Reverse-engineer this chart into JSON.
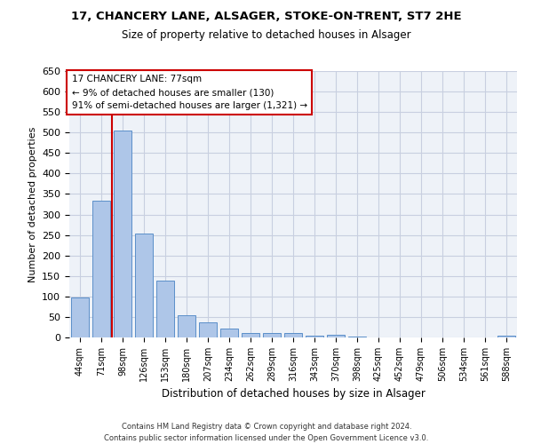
{
  "title1": "17, CHANCERY LANE, ALSAGER, STOKE-ON-TRENT, ST7 2HE",
  "title2": "Size of property relative to detached houses in Alsager",
  "xlabel": "Distribution of detached houses by size in Alsager",
  "ylabel": "Number of detached properties",
  "categories": [
    "44sqm",
    "71sqm",
    "98sqm",
    "126sqm",
    "153sqm",
    "180sqm",
    "207sqm",
    "234sqm",
    "262sqm",
    "289sqm",
    "316sqm",
    "343sqm",
    "370sqm",
    "398sqm",
    "425sqm",
    "452sqm",
    "479sqm",
    "506sqm",
    "534sqm",
    "561sqm",
    "588sqm"
  ],
  "bar_heights": [
    97,
    333,
    504,
    254,
    138,
    54,
    37,
    21,
    10,
    11,
    11,
    5,
    6,
    2,
    1,
    1,
    1,
    0,
    0,
    1,
    5
  ],
  "bar_color": "#aec6e8",
  "bar_edge_color": "#5b8fc9",
  "vertical_line_color": "#cc0000",
  "annotation_text": "17 CHANCERY LANE: 77sqm\n← 9% of detached houses are smaller (130)\n91% of semi-detached houses are larger (1,321) →",
  "annotation_box_color": "#ffffff",
  "annotation_box_edge_color": "#cc0000",
  "ylim": [
    0,
    650
  ],
  "yticks": [
    0,
    50,
    100,
    150,
    200,
    250,
    300,
    350,
    400,
    450,
    500,
    550,
    600,
    650
  ],
  "footer1": "Contains HM Land Registry data © Crown copyright and database right 2024.",
  "footer2": "Contains public sector information licensed under the Open Government Licence v3.0.",
  "background_color": "#eef2f8",
  "grid_color": "#c8cfe0"
}
